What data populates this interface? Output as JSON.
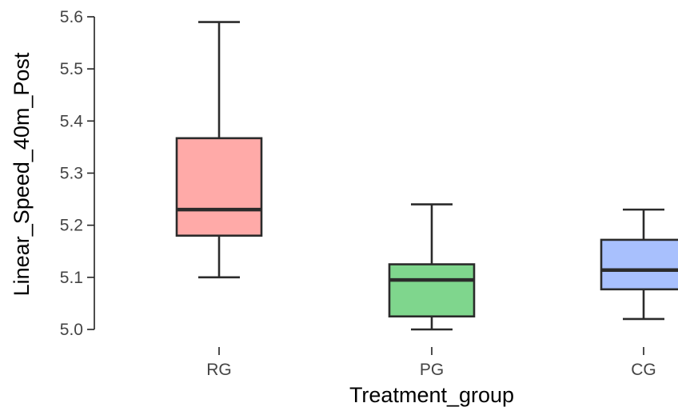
{
  "chart_data": {
    "type": "box",
    "xlabel": "Treatment_group",
    "ylabel": "Linear_Speed_40m_Post",
    "ylim": [
      5.0,
      5.6
    ],
    "yticks": [
      "5.0",
      "5.1",
      "5.2",
      "5.3",
      "5.4",
      "5.5",
      "5.6"
    ],
    "categories": [
      "RG",
      "PG",
      "CG"
    ],
    "boxes": [
      {
        "category": "RG",
        "min": 5.1,
        "q1": 5.18,
        "median": 5.23,
        "q3": 5.367,
        "max": 5.59,
        "color": "#ffaaa8"
      },
      {
        "category": "PG",
        "min": 5.0,
        "q1": 5.025,
        "median": 5.095,
        "q3": 5.125,
        "max": 5.24,
        "color": "#7fd68d"
      },
      {
        "category": "CG",
        "min": 5.02,
        "q1": 5.077,
        "median": 5.114,
        "q3": 5.172,
        "max": 5.23,
        "color": "#a8c0fd"
      }
    ],
    "grid": false,
    "legend": "none"
  }
}
